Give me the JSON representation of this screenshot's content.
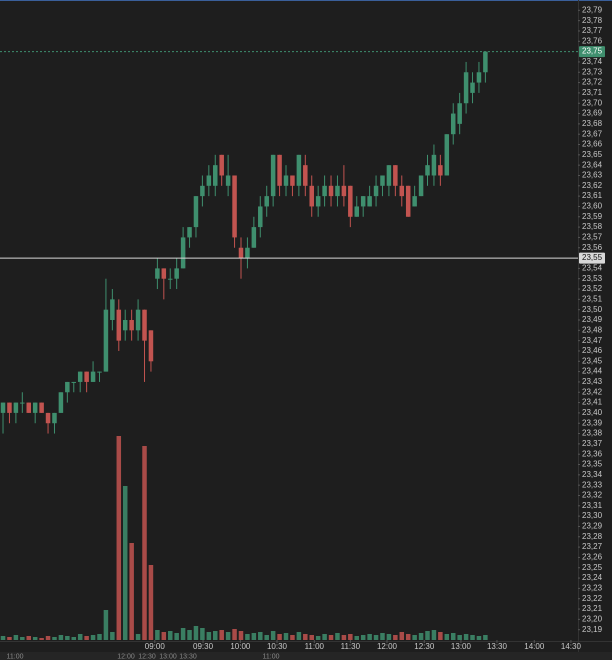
{
  "chart_data": {
    "type": "candlestick",
    "up_color": "#3f8f6e",
    "down_color": "#c25450",
    "ylim": [
      23.18,
      23.8
    ],
    "xlim": [
      -0.47,
      89.4
    ],
    "yticks": [
      {
        "value": 23.19,
        "label": "23,19"
      },
      {
        "value": 23.2,
        "label": "23,20"
      },
      {
        "value": 23.21,
        "label": "23,21"
      },
      {
        "value": 23.22,
        "label": "23,22"
      },
      {
        "value": 23.23,
        "label": "23,23"
      },
      {
        "value": 23.24,
        "label": "23,24"
      },
      {
        "value": 23.25,
        "label": "23,25"
      },
      {
        "value": 23.26,
        "label": "23,26"
      },
      {
        "value": 23.27,
        "label": "23,27"
      },
      {
        "value": 23.28,
        "label": "23,28"
      },
      {
        "value": 23.29,
        "label": "23,29"
      },
      {
        "value": 23.3,
        "label": "23,30"
      },
      {
        "value": 23.31,
        "label": "23,31"
      },
      {
        "value": 23.32,
        "label": "23,32"
      },
      {
        "value": 23.33,
        "label": "23,33"
      },
      {
        "value": 23.34,
        "label": "23,34"
      },
      {
        "value": 23.35,
        "label": "23,35"
      },
      {
        "value": 23.36,
        "label": "23,36"
      },
      {
        "value": 23.37,
        "label": "23,37"
      },
      {
        "value": 23.38,
        "label": "23,38"
      },
      {
        "value": 23.39,
        "label": "23,39"
      },
      {
        "value": 23.4,
        "label": "23,40"
      },
      {
        "value": 23.41,
        "label": "23,41"
      },
      {
        "value": 23.42,
        "label": "23,42"
      },
      {
        "value": 23.43,
        "label": "23,43"
      },
      {
        "value": 23.44,
        "label": "23,44"
      },
      {
        "value": 23.45,
        "label": "23,45"
      },
      {
        "value": 23.46,
        "label": "23,46"
      },
      {
        "value": 23.47,
        "label": "23,47"
      },
      {
        "value": 23.48,
        "label": "23,48"
      },
      {
        "value": 23.49,
        "label": "23,49"
      },
      {
        "value": 23.5,
        "label": "23,50"
      },
      {
        "value": 23.51,
        "label": "23,51"
      },
      {
        "value": 23.52,
        "label": "23,52"
      },
      {
        "value": 23.53,
        "label": "23,53"
      },
      {
        "value": 23.54,
        "label": "23,54"
      },
      {
        "value": 23.56,
        "label": "23,56"
      },
      {
        "value": 23.57,
        "label": "23,57"
      },
      {
        "value": 23.58,
        "label": "23,58"
      },
      {
        "value": 23.59,
        "label": "23,59"
      },
      {
        "value": 23.6,
        "label": "23,60"
      },
      {
        "value": 23.61,
        "label": "23,61"
      },
      {
        "value": 23.62,
        "label": "23,62"
      },
      {
        "value": 23.63,
        "label": "23,63"
      },
      {
        "value": 23.64,
        "label": "23,64"
      },
      {
        "value": 23.65,
        "label": "23,65"
      },
      {
        "value": 23.66,
        "label": "23,66"
      },
      {
        "value": 23.67,
        "label": "23,67"
      },
      {
        "value": 23.68,
        "label": "23,68"
      },
      {
        "value": 23.69,
        "label": "23,69"
      },
      {
        "value": 23.7,
        "label": "23,70"
      },
      {
        "value": 23.71,
        "label": "23,71"
      },
      {
        "value": 23.72,
        "label": "23,72"
      },
      {
        "value": 23.73,
        "label": "23,73"
      },
      {
        "value": 23.74,
        "label": "23,74"
      },
      {
        "value": 23.76,
        "label": "23,76"
      },
      {
        "value": 23.77,
        "label": "23,77"
      },
      {
        "value": 23.78,
        "label": "23,78"
      },
      {
        "value": 23.79,
        "label": "23,79"
      }
    ],
    "xticks": [
      {
        "value": 23.6,
        "label": "09:00"
      },
      {
        "value": 31.1,
        "label": "09:30"
      },
      {
        "value": 36.9,
        "label": "10:00"
      },
      {
        "value": 42.6,
        "label": "10:30"
      },
      {
        "value": 48.4,
        "label": "11:00"
      },
      {
        "value": 54.0,
        "label": "11:30"
      },
      {
        "value": 59.7,
        "label": "12:00"
      },
      {
        "value": 65.5,
        "label": "12:30"
      },
      {
        "value": 71.2,
        "label": "13:00"
      },
      {
        "value": 76.8,
        "label": "13:30"
      },
      {
        "value": 82.6,
        "label": "14:00"
      },
      {
        "value": 88.3,
        "label": "14:30"
      }
    ],
    "last_price": {
      "value": 23.75,
      "label": "23,75",
      "color": "#3f8f6e"
    },
    "reference_line": {
      "value": 23.55,
      "label": "23,55",
      "color": "#d8d8d8"
    },
    "navigator_labels": [
      "11:00",
      "12:00",
      "12:30",
      "13:00",
      "13:30",
      "11:00"
    ],
    "open": [
      23.4,
      23.41,
      23.4,
      23.41,
      23.41,
      23.4,
      23.41,
      23.4,
      23.39,
      23.4,
      23.42,
      23.43,
      23.43,
      23.44,
      23.43,
      23.44,
      23.44,
      23.49,
      23.5,
      23.48,
      23.49,
      23.48,
      23.5,
      23.48,
      23.53,
      23.54,
      23.53,
      23.53,
      23.54,
      23.57,
      23.58,
      23.61,
      23.62,
      23.62,
      23.65,
      23.62,
      23.63,
      23.56,
      23.55,
      23.56,
      23.58,
      23.6,
      23.61,
      23.65,
      23.62,
      23.63,
      23.62,
      23.64,
      23.62,
      23.6,
      23.61,
      23.62,
      23.61,
      23.62,
      23.62,
      23.59,
      23.6,
      23.6,
      23.61,
      23.62,
      23.62,
      23.64,
      23.62,
      23.62,
      23.6,
      23.61,
      23.63,
      23.63,
      23.64,
      23.63,
      23.67,
      23.68,
      23.7,
      23.71,
      23.72,
      23.73
    ],
    "high": [
      23.41,
      23.41,
      23.41,
      23.42,
      23.41,
      23.41,
      23.41,
      23.4,
      23.4,
      23.42,
      23.43,
      23.43,
      23.44,
      23.44,
      23.45,
      23.44,
      23.53,
      23.52,
      23.51,
      23.5,
      23.5,
      23.51,
      23.5,
      23.48,
      23.55,
      23.54,
      23.54,
      23.55,
      23.58,
      23.58,
      23.61,
      23.63,
      23.64,
      23.65,
      23.65,
      23.65,
      23.63,
      23.57,
      23.57,
      23.59,
      23.61,
      23.62,
      23.65,
      23.65,
      23.64,
      23.63,
      23.65,
      23.65,
      23.63,
      23.62,
      23.63,
      23.63,
      23.63,
      23.64,
      23.62,
      23.61,
      23.61,
      23.62,
      23.63,
      23.63,
      23.64,
      23.64,
      23.63,
      23.62,
      23.62,
      23.63,
      23.65,
      23.66,
      23.65,
      23.67,
      23.7,
      23.71,
      23.74,
      23.73,
      23.74,
      23.75
    ],
    "low": [
      23.38,
      23.39,
      23.39,
      23.4,
      23.4,
      23.39,
      23.4,
      23.38,
      23.38,
      23.4,
      23.41,
      23.42,
      23.42,
      23.42,
      23.43,
      23.43,
      23.44,
      23.48,
      23.46,
      23.47,
      23.47,
      23.47,
      23.43,
      23.44,
      23.52,
      23.51,
      23.52,
      23.52,
      23.54,
      23.56,
      23.57,
      23.6,
      23.61,
      23.61,
      23.62,
      23.61,
      23.56,
      23.53,
      23.54,
      23.56,
      23.57,
      23.59,
      23.6,
      23.61,
      23.61,
      23.61,
      23.61,
      23.61,
      23.59,
      23.59,
      23.6,
      23.6,
      23.6,
      23.6,
      23.58,
      23.59,
      23.59,
      23.6,
      23.6,
      23.61,
      23.61,
      23.61,
      23.6,
      23.59,
      23.6,
      23.61,
      23.62,
      23.62,
      23.62,
      23.63,
      23.66,
      23.67,
      23.69,
      23.7,
      23.71,
      23.72
    ],
    "close": [
      23.41,
      23.4,
      23.41,
      23.41,
      23.4,
      23.41,
      23.4,
      23.39,
      23.4,
      23.42,
      23.43,
      23.43,
      23.44,
      23.43,
      23.44,
      23.44,
      23.5,
      23.51,
      23.47,
      23.49,
      23.48,
      23.5,
      23.47,
      23.45,
      23.54,
      23.53,
      23.53,
      23.54,
      23.57,
      23.58,
      23.61,
      23.62,
      23.63,
      23.64,
      23.63,
      23.63,
      23.57,
      23.55,
      23.56,
      23.58,
      23.6,
      23.61,
      23.65,
      23.62,
      23.63,
      23.62,
      23.65,
      23.62,
      23.6,
      23.61,
      23.62,
      23.61,
      23.62,
      23.61,
      23.59,
      23.6,
      23.61,
      23.61,
      23.62,
      23.63,
      23.64,
      23.62,
      23.61,
      23.59,
      23.61,
      23.63,
      23.64,
      23.65,
      23.63,
      23.67,
      23.69,
      23.7,
      23.73,
      23.72,
      23.73,
      23.75
    ],
    "volume_ylim": [
      0,
      640
    ],
    "volume": [
      4,
      3,
      5,
      3,
      4,
      3,
      2,
      4,
      3,
      5,
      4,
      3,
      6,
      4,
      5,
      6,
      30,
      8,
      204,
      154,
      97,
      6,
      194,
      75,
      10,
      8,
      9,
      7,
      12,
      10,
      14,
      12,
      8,
      9,
      10,
      8,
      11,
      9,
      6,
      7,
      8,
      5,
      9,
      6,
      7,
      5,
      8,
      6,
      5,
      4,
      6,
      5,
      7,
      5,
      6,
      4,
      5,
      6,
      5,
      7,
      6,
      5,
      8,
      6,
      5,
      7,
      9,
      10,
      8,
      6,
      7,
      5,
      6,
      5,
      4,
      5
    ]
  }
}
